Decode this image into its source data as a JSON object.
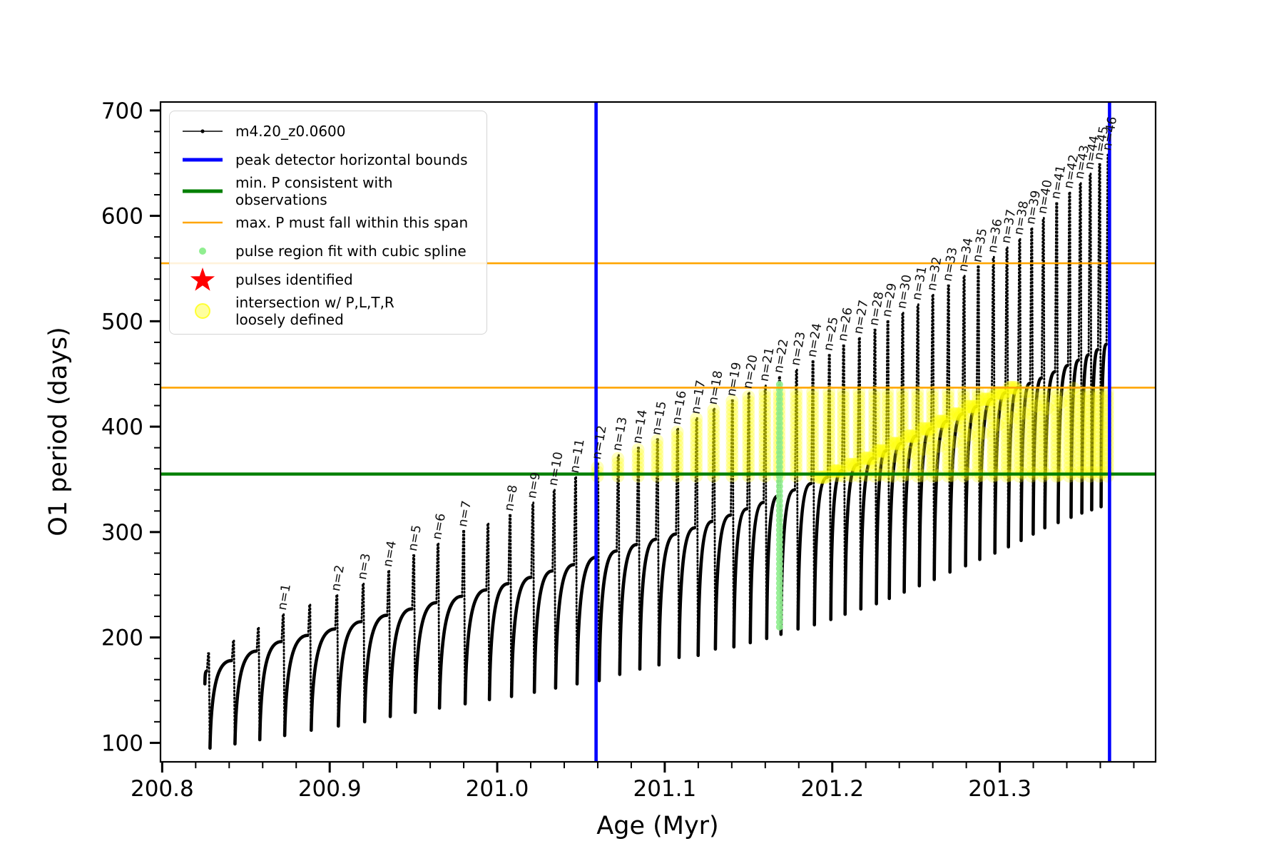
{
  "figure": {
    "background": "#ffffff"
  },
  "axes": {
    "xlabel": "Age (Myr)",
    "ylabel": "O1 period (days)"
  },
  "colors": {
    "series": "#000000",
    "peak_bounds": "#0000ff",
    "min_P_line": "#007f00",
    "max_P_line": "#ffa500",
    "spline_dots": "#90ee90",
    "intersection": "#ffff00",
    "pulse_star": "#ff0000",
    "tick_and_text": "#000000"
  },
  "legend": {
    "entries": [
      {
        "marker": "series-line",
        "label": "m4.20_z0.0600"
      },
      {
        "marker": "hline-blue",
        "label": "peak detector horizontal bounds"
      },
      {
        "marker": "hline-green",
        "label": "min. P consistent with observations"
      },
      {
        "marker": "hline-orange",
        "label": "max. P must fall within this span"
      },
      {
        "marker": "dot-lightgreen",
        "label": "pulse region fit with cubic spline"
      },
      {
        "marker": "star-red",
        "label": "pulses identified"
      },
      {
        "marker": "circle-yellow",
        "label": "intersection w/ P,L,T,R\nloosely defined"
      }
    ]
  },
  "chart_data": {
    "type": "line",
    "title": "",
    "xlabel": "Age (Myr)",
    "ylabel": "O1 period (days)",
    "series_label": "m4.20_z0.0600",
    "xlim": [
      200.799,
      201.393
    ],
    "ylim": [
      82,
      708
    ],
    "x_major_ticks": [
      200.8,
      200.9,
      201.0,
      201.1,
      201.2,
      201.3
    ],
    "x_tick_labels": [
      "200.8",
      "200.9",
      "201.0",
      "201.1",
      "201.2",
      "201.3"
    ],
    "x_minor_step": 0.02,
    "y_major_ticks": [
      100,
      200,
      300,
      400,
      500,
      600,
      700
    ],
    "y_tick_labels": [
      "100",
      "200",
      "300",
      "400",
      "500",
      "600",
      "700"
    ],
    "y_minor_step": 20,
    "grid": false,
    "legend_position": "upper left",
    "peak_detector_bounds_age": [
      201.059,
      201.3655
    ],
    "min_P_consistent": 355,
    "max_P_span": [
      437,
      555
    ],
    "spline_fit_column": {
      "age": 201.1685,
      "period_range": [
        210,
        443
      ],
      "pulse": 22
    },
    "intersection_band": {
      "period_range": [
        355,
        437
      ],
      "age_range": [
        201.059,
        201.3655
      ]
    },
    "start_point": {
      "age": 200.8255,
      "period": 156
    },
    "pulse_count": 46,
    "teeth": [
      {
        "n": null,
        "age": 200.8277,
        "peak": 185,
        "plateau": 168,
        "min_after": 95
      },
      {
        "n": null,
        "age": 200.8426,
        "peak": 197,
        "plateau": 178,
        "min_after": 99
      },
      {
        "n": null,
        "age": 200.8574,
        "peak": 209,
        "plateau": 187,
        "min_after": 103
      },
      {
        "n": 1,
        "age": 200.8723,
        "peak": 222,
        "plateau": 196,
        "min_after": 107
      },
      {
        "n": null,
        "age": 200.8881,
        "peak": 231,
        "plateau": 202,
        "min_after": 112
      },
      {
        "n": 2,
        "age": 200.9043,
        "peak": 240,
        "plateau": 208,
        "min_after": 116
      },
      {
        "n": 3,
        "age": 200.92,
        "peak": 251,
        "plateau": 215,
        "min_after": 120
      },
      {
        "n": 4,
        "age": 200.9353,
        "peak": 263,
        "plateau": 221,
        "min_after": 125
      },
      {
        "n": 5,
        "age": 200.9502,
        "peak": 278,
        "plateau": 227,
        "min_after": 129
      },
      {
        "n": 6,
        "age": 200.9647,
        "peak": 289,
        "plateau": 233,
        "min_after": 133
      },
      {
        "n": 7,
        "age": 200.98,
        "peak": 301,
        "plateau": 239,
        "min_after": 137
      },
      {
        "n": null,
        "age": 200.9945,
        "peak": 308,
        "plateau": 245,
        "min_after": 141
      },
      {
        "n": 8,
        "age": 201.0077,
        "peak": 316,
        "plateau": 251,
        "min_after": 144
      },
      {
        "n": 9,
        "age": 201.0213,
        "peak": 328,
        "plateau": 257,
        "min_after": 148
      },
      {
        "n": 10,
        "age": 201.034,
        "peak": 340,
        "plateau": 263,
        "min_after": 152
      },
      {
        "n": 11,
        "age": 201.0468,
        "peak": 352,
        "plateau": 269,
        "min_after": 156
      },
      {
        "n": 12,
        "age": 201.06,
        "peak": 365,
        "plateau": 276,
        "min_after": 159
      },
      {
        "n": 13,
        "age": 201.0723,
        "peak": 373,
        "plateau": 282,
        "min_after": 165
      },
      {
        "n": 14,
        "age": 201.0843,
        "peak": 380,
        "plateau": 288,
        "min_after": 170
      },
      {
        "n": 15,
        "age": 201.0957,
        "peak": 388,
        "plateau": 293,
        "min_after": 174
      },
      {
        "n": 16,
        "age": 201.1077,
        "peak": 398,
        "plateau": 298,
        "min_after": 181
      },
      {
        "n": 17,
        "age": 201.1191,
        "peak": 408,
        "plateau": 304,
        "min_after": 183
      },
      {
        "n": 18,
        "age": 201.1294,
        "peak": 417,
        "plateau": 310,
        "min_after": 189
      },
      {
        "n": 19,
        "age": 201.1404,
        "peak": 425,
        "plateau": 316,
        "min_after": 191
      },
      {
        "n": 20,
        "age": 201.1502,
        "peak": 432,
        "plateau": 322,
        "min_after": 195
      },
      {
        "n": 21,
        "age": 201.16,
        "peak": 439,
        "plateau": 328,
        "min_after": 199
      },
      {
        "n": 22,
        "age": 201.1685,
        "peak": 447,
        "plateau": 334,
        "min_after": 203
      },
      {
        "n": 23,
        "age": 201.1787,
        "peak": 454,
        "plateau": 340,
        "min_after": 208
      },
      {
        "n": 24,
        "age": 201.1885,
        "peak": 462,
        "plateau": 346,
        "min_after": 212
      },
      {
        "n": 25,
        "age": 201.1983,
        "peak": 468,
        "plateau": 352,
        "min_after": 217
      },
      {
        "n": 26,
        "age": 201.2068,
        "peak": 477,
        "plateau": 358,
        "min_after": 222
      },
      {
        "n": 27,
        "age": 201.2162,
        "peak": 484,
        "plateau": 364,
        "min_after": 227
      },
      {
        "n": 28,
        "age": 201.2255,
        "peak": 492,
        "plateau": 370,
        "min_after": 232
      },
      {
        "n": 29,
        "age": 201.2332,
        "peak": 500,
        "plateau": 377,
        "min_after": 237
      },
      {
        "n": 30,
        "age": 201.2421,
        "peak": 508,
        "plateau": 384,
        "min_after": 243
      },
      {
        "n": 31,
        "age": 201.2511,
        "peak": 516,
        "plateau": 391,
        "min_after": 249
      },
      {
        "n": 32,
        "age": 201.26,
        "peak": 525,
        "plateau": 398,
        "min_after": 255
      },
      {
        "n": 33,
        "age": 201.2694,
        "peak": 534,
        "plateau": 405,
        "min_after": 262
      },
      {
        "n": 34,
        "age": 201.2787,
        "peak": 543,
        "plateau": 412,
        "min_after": 268
      },
      {
        "n": 35,
        "age": 201.2872,
        "peak": 552,
        "plateau": 419,
        "min_after": 274
      },
      {
        "n": 36,
        "age": 201.2962,
        "peak": 561,
        "plateau": 426,
        "min_after": 280
      },
      {
        "n": 37,
        "age": 201.3043,
        "peak": 570,
        "plateau": 432,
        "min_after": 286
      },
      {
        "n": 38,
        "age": 201.3119,
        "peak": 578,
        "plateau": 437,
        "min_after": 292
      },
      {
        "n": 39,
        "age": 201.3191,
        "peak": 588,
        "plateau": 441,
        "min_after": 298
      },
      {
        "n": 40,
        "age": 201.326,
        "peak": 598,
        "plateau": 446,
        "min_after": 304
      },
      {
        "n": 41,
        "age": 201.334,
        "peak": 612,
        "plateau": 452,
        "min_after": 309
      },
      {
        "n": 42,
        "age": 201.3417,
        "peak": 622,
        "plateau": 458,
        "min_after": 314
      },
      {
        "n": 43,
        "age": 201.3481,
        "peak": 631,
        "plateau": 463,
        "min_after": 318
      },
      {
        "n": 44,
        "age": 201.354,
        "peak": 640,
        "plateau": 468,
        "min_after": 321
      },
      {
        "n": 45,
        "age": 201.3596,
        "peak": 649,
        "plateau": 473,
        "min_after": 324
      },
      {
        "n": 46,
        "age": 201.3647,
        "peak": 658,
        "plateau": 478,
        "min_after": 327
      }
    ]
  }
}
